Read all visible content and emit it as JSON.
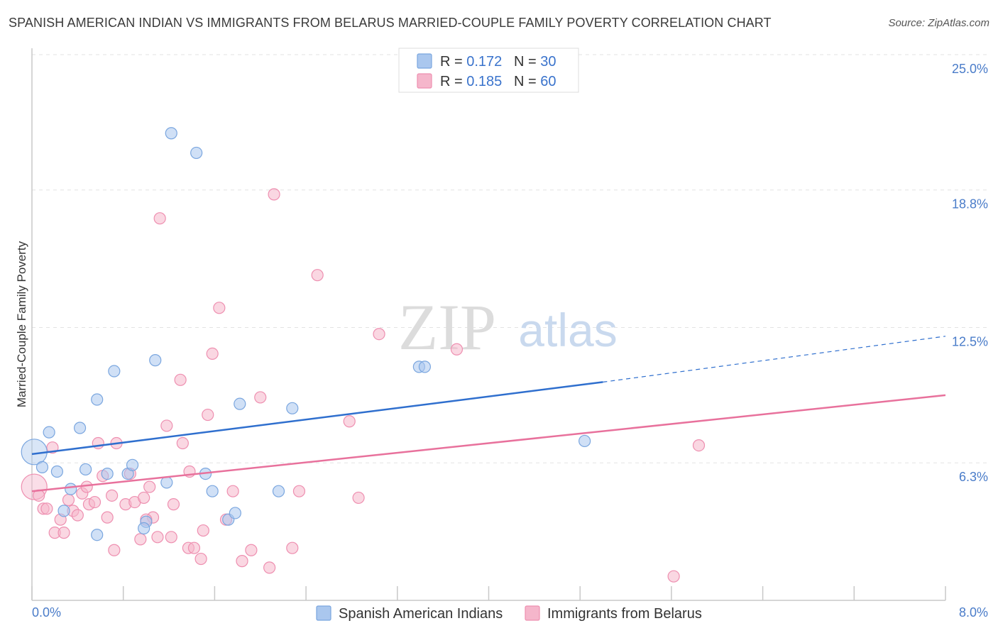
{
  "header": {
    "title": "SPANISH AMERICAN INDIAN VS IMMIGRANTS FROM BELARUS MARRIED-COUPLE FAMILY POVERTY CORRELATION CHART",
    "source": "Source: ZipAtlas.com"
  },
  "watermark": {
    "zip": "ZIP",
    "atlas": "atlas"
  },
  "legend_top": {
    "rows": [
      {
        "r_label": "R = ",
        "r_value": "0.172",
        "n_label": "N = ",
        "n_value": "30",
        "color": "#a9c8ef"
      },
      {
        "r_label": "R = ",
        "r_value": "0.185",
        "n_label": "N = ",
        "n_value": "60",
        "color": "#f6b8cc"
      }
    ]
  },
  "colors": {
    "blue_fill": "#aac7ee",
    "blue_stroke": "#7aa6df",
    "blue_line": "#2f6fce",
    "pink_fill": "#f5b6cb",
    "pink_stroke": "#ee8fb0",
    "pink_line": "#e8719c",
    "axis_text": "#4a7cc9",
    "grid": "#e3e3e3"
  },
  "chart_data": {
    "type": "scatter",
    "title": "SPANISH AMERICAN INDIAN VS IMMIGRANTS FROM BELARUS MARRIED-COUPLE FAMILY POVERTY CORRELATION CHART",
    "xlabel": "",
    "ylabel": "Married-Couple Family Poverty",
    "xlim": [
      0,
      8.0
    ],
    "ylim": [
      0,
      25.0
    ],
    "x_tick_labels": [
      "0.0%",
      "8.0%"
    ],
    "y_ticks": [
      6.3,
      12.5,
      18.8,
      25.0
    ],
    "y_tick_labels": [
      "6.3%",
      "12.5%",
      "18.8%",
      "25.0%"
    ],
    "legend_position": "bottom-center",
    "series": [
      {
        "name": "Spanish American Indians",
        "r": 0.172,
        "n": 30,
        "trend": {
          "x0": 0.0,
          "y0": 6.7,
          "x1": 5.0,
          "y1": 10.0,
          "dashed_to_x": 8.0,
          "dashed_to_y": 12.1
        },
        "points": [
          {
            "x": 0.02,
            "y": 6.8,
            "big": true
          },
          {
            "x": 0.09,
            "y": 6.1
          },
          {
            "x": 0.15,
            "y": 7.7
          },
          {
            "x": 0.22,
            "y": 5.9
          },
          {
            "x": 0.28,
            "y": 4.1
          },
          {
            "x": 0.34,
            "y": 5.1
          },
          {
            "x": 0.42,
            "y": 7.9
          },
          {
            "x": 0.47,
            "y": 6.0
          },
          {
            "x": 0.57,
            "y": 9.2
          },
          {
            "x": 0.57,
            "y": 3.0
          },
          {
            "x": 0.66,
            "y": 5.8
          },
          {
            "x": 0.72,
            "y": 10.5
          },
          {
            "x": 0.84,
            "y": 5.8
          },
          {
            "x": 0.88,
            "y": 6.2
          },
          {
            "x": 1.0,
            "y": 3.6
          },
          {
            "x": 0.98,
            "y": 3.3
          },
          {
            "x": 1.08,
            "y": 11.0
          },
          {
            "x": 1.18,
            "y": 5.4
          },
          {
            "x": 1.22,
            "y": 21.4
          },
          {
            "x": 1.44,
            "y": 20.5
          },
          {
            "x": 1.52,
            "y": 5.8
          },
          {
            "x": 1.58,
            "y": 5.0
          },
          {
            "x": 1.72,
            "y": 3.7
          },
          {
            "x": 1.78,
            "y": 4.0
          },
          {
            "x": 1.82,
            "y": 9.0
          },
          {
            "x": 2.16,
            "y": 5.0
          },
          {
            "x": 2.28,
            "y": 8.8
          },
          {
            "x": 3.39,
            "y": 10.7
          },
          {
            "x": 3.44,
            "y": 10.7
          },
          {
            "x": 4.84,
            "y": 7.3
          }
        ]
      },
      {
        "name": "Immigrants from Belarus",
        "r": 0.185,
        "n": 60,
        "trend": {
          "x0": 0.0,
          "y0": 5.0,
          "x1": 8.0,
          "y1": 9.4
        },
        "points": [
          {
            "x": 0.02,
            "y": 5.2,
            "big": true
          },
          {
            "x": 0.1,
            "y": 4.2
          },
          {
            "x": 0.13,
            "y": 4.2
          },
          {
            "x": 0.18,
            "y": 7.0
          },
          {
            "x": 0.2,
            "y": 3.1
          },
          {
            "x": 0.25,
            "y": 3.7
          },
          {
            "x": 0.28,
            "y": 3.1
          },
          {
            "x": 0.32,
            "y": 4.6
          },
          {
            "x": 0.36,
            "y": 4.1
          },
          {
            "x": 0.4,
            "y": 3.9
          },
          {
            "x": 0.44,
            "y": 4.9
          },
          {
            "x": 0.48,
            "y": 5.2
          },
          {
            "x": 0.5,
            "y": 4.4
          },
          {
            "x": 0.55,
            "y": 4.5
          },
          {
            "x": 0.58,
            "y": 7.2
          },
          {
            "x": 0.62,
            "y": 5.7
          },
          {
            "x": 0.66,
            "y": 3.8
          },
          {
            "x": 0.7,
            "y": 4.8
          },
          {
            "x": 0.72,
            "y": 2.3
          },
          {
            "x": 0.74,
            "y": 7.2
          },
          {
            "x": 0.82,
            "y": 4.4
          },
          {
            "x": 0.86,
            "y": 5.8
          },
          {
            "x": 0.9,
            "y": 4.5
          },
          {
            "x": 0.95,
            "y": 2.8
          },
          {
            "x": 0.98,
            "y": 4.7
          },
          {
            "x": 1.03,
            "y": 5.2
          },
          {
            "x": 1.06,
            "y": 3.8
          },
          {
            "x": 1.1,
            "y": 2.9
          },
          {
            "x": 1.12,
            "y": 17.5
          },
          {
            "x": 1.18,
            "y": 8.0
          },
          {
            "x": 1.22,
            "y": 2.9
          },
          {
            "x": 1.24,
            "y": 4.4
          },
          {
            "x": 1.3,
            "y": 10.1
          },
          {
            "x": 1.32,
            "y": 7.2
          },
          {
            "x": 1.37,
            "y": 2.4
          },
          {
            "x": 1.38,
            "y": 5.9
          },
          {
            "x": 1.42,
            "y": 2.4
          },
          {
            "x": 1.48,
            "y": 1.9
          },
          {
            "x": 1.5,
            "y": 3.2
          },
          {
            "x": 1.54,
            "y": 8.5
          },
          {
            "x": 1.58,
            "y": 11.3
          },
          {
            "x": 1.64,
            "y": 13.4
          },
          {
            "x": 1.7,
            "y": 3.7
          },
          {
            "x": 1.76,
            "y": 5.0
          },
          {
            "x": 1.84,
            "y": 1.8
          },
          {
            "x": 1.92,
            "y": 2.3
          },
          {
            "x": 2.0,
            "y": 9.3
          },
          {
            "x": 2.08,
            "y": 1.5
          },
          {
            "x": 2.12,
            "y": 18.6
          },
          {
            "x": 2.28,
            "y": 2.4
          },
          {
            "x": 2.34,
            "y": 5.0
          },
          {
            "x": 2.5,
            "y": 14.9
          },
          {
            "x": 2.78,
            "y": 8.2
          },
          {
            "x": 2.86,
            "y": 4.7
          },
          {
            "x": 3.04,
            "y": 12.2
          },
          {
            "x": 3.72,
            "y": 11.5
          },
          {
            "x": 5.84,
            "y": 7.1
          },
          {
            "x": 5.62,
            "y": 1.1
          },
          {
            "x": 0.06,
            "y": 4.8
          },
          {
            "x": 1.0,
            "y": 3.7
          }
        ]
      }
    ]
  }
}
